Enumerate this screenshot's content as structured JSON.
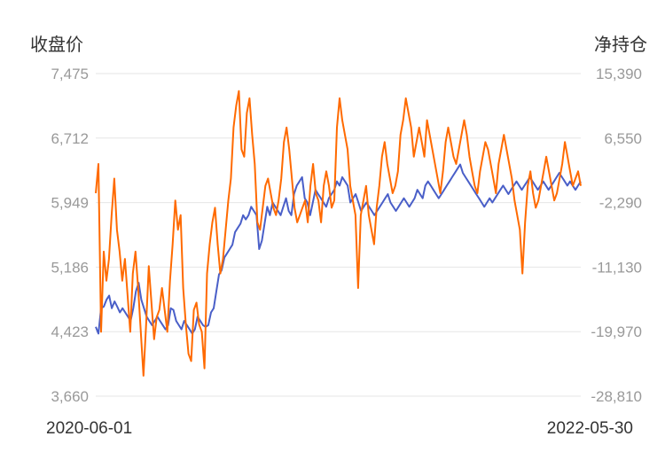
{
  "chart_data": {
    "type": "line",
    "y_left_label": "收盘价",
    "y_right_label": "净持仓",
    "x_start_label": "2020-06-01",
    "x_end_label": "2022-05-30",
    "y_left_ticks": [
      "7,475",
      "6,712",
      "5,949",
      "5,186",
      "4,423",
      "3,660"
    ],
    "y_right_ticks": [
      "15,390",
      "6,550",
      "-2,290",
      "-11,130",
      "-19,970",
      "-28,810"
    ],
    "y_left_lim": [
      3660,
      7475
    ],
    "y_right_lim": [
      -28810,
      15390
    ],
    "grid": true,
    "colors": {
      "close_price": "#4a5fc8",
      "net_position": "#ff6a00",
      "grid": "#e6e6e6"
    },
    "series": [
      {
        "axis": "left",
        "values": [
          4480,
          4400,
          4700,
          4720,
          4800,
          4850,
          4700,
          4780,
          4720,
          4650,
          4700,
          4650,
          4600,
          4550,
          4700,
          4900,
          5000,
          4800,
          4700,
          4600,
          4550,
          4500,
          4550,
          4600,
          4550,
          4500,
          4450,
          4500,
          4700,
          4680,
          4550,
          4500,
          4450,
          4550,
          4500,
          4450,
          4400,
          4450,
          4600,
          4550,
          4500,
          4480,
          4500,
          4650,
          4700,
          4900,
          5100,
          5150,
          5300,
          5350,
          5400,
          5450,
          5600,
          5650,
          5700,
          5800,
          5750,
          5800,
          5900,
          5850,
          5800,
          5400,
          5500,
          5700,
          5900,
          5800,
          5950,
          5900,
          5850,
          5800,
          5900,
          6000,
          5850,
          5800,
          6050,
          6150,
          6200,
          6250,
          6000,
          5950,
          5800,
          5950,
          6100,
          6050,
          6000,
          5950,
          5900,
          6000,
          6050,
          6100,
          6200,
          6150,
          6250,
          6200,
          6150,
          5950,
          6000,
          6050,
          5950,
          5850,
          5900,
          5950,
          5900,
          5850,
          5800,
          5850,
          5900,
          5950,
          6000,
          6050,
          5950,
          5900,
          5850,
          5900,
          5950,
          6000,
          5950,
          5900,
          5950,
          6000,
          6100,
          6050,
          6000,
          6150,
          6200,
          6150,
          6100,
          6050,
          6000,
          6050,
          6100,
          6150,
          6200,
          6250,
          6300,
          6350,
          6400,
          6300,
          6250,
          6200,
          6150,
          6100,
          6050,
          6000,
          5950,
          5900,
          5950,
          6000,
          5950,
          6000,
          6050,
          6100,
          6150,
          6100,
          6050,
          6100,
          6150,
          6200,
          6150,
          6100,
          6150,
          6200,
          6250,
          6200,
          6150,
          6100,
          6150,
          6200,
          6150,
          6100,
          6150,
          6200,
          6250,
          6300,
          6250,
          6200,
          6150,
          6200,
          6150,
          6100,
          6150,
          6200
        ]
      },
      {
        "axis": "right",
        "values": [
          -1000,
          3000,
          -20000,
          -9000,
          -13000,
          -10000,
          -4000,
          1000,
          -6000,
          -9000,
          -13000,
          -10000,
          -15000,
          -20000,
          -12000,
          -9000,
          -14000,
          -20000,
          -26000,
          -19000,
          -11000,
          -16000,
          -21000,
          -18000,
          -17000,
          -14000,
          -17000,
          -20000,
          -13000,
          -8000,
          -2000,
          -6000,
          -4000,
          -14000,
          -19000,
          -23000,
          -24000,
          -17000,
          -16000,
          -19000,
          -20000,
          -25000,
          -12000,
          -8000,
          -5000,
          -3000,
          -8000,
          -12000,
          -10000,
          -6000,
          -2000,
          1000,
          8000,
          11000,
          13000,
          5000,
          4000,
          10000,
          12000,
          7000,
          3000,
          -5000,
          -6000,
          -3000,
          0,
          1000,
          -1000,
          -3000,
          -4000,
          -2000,
          1000,
          6000,
          8000,
          5000,
          1000,
          -3000,
          -5000,
          -4000,
          -3000,
          -2000,
          -5000,
          0,
          3000,
          -1000,
          -2000,
          -5000,
          0,
          2000,
          0,
          -3000,
          -2000,
          8000,
          12000,
          9000,
          7000,
          5000,
          0,
          -2000,
          -4000,
          -14000,
          -4000,
          -2000,
          0,
          -4000,
          -6000,
          -8000,
          -3000,
          0,
          4000,
          6000,
          3000,
          1000,
          -1000,
          0,
          2000,
          7000,
          9000,
          12000,
          10000,
          8000,
          4000,
          6000,
          8000,
          6000,
          4000,
          9000,
          7000,
          5000,
          3000,
          1000,
          -1000,
          2000,
          6000,
          8000,
          6000,
          4000,
          3000,
          5000,
          7000,
          9000,
          7000,
          4000,
          2000,
          0,
          -1000,
          2000,
          4000,
          6000,
          5000,
          3000,
          1000,
          -1000,
          3000,
          5000,
          7000,
          5000,
          3000,
          1000,
          -2000,
          -4000,
          -6000,
          -12000,
          -5000,
          0,
          2000,
          -1000,
          -3000,
          -2000,
          0,
          2000,
          4000,
          2000,
          0,
          -2000,
          -1000,
          1000,
          3000,
          6000,
          4000,
          2000,
          0,
          1000,
          2000,
          0
        ]
      }
    ]
  }
}
